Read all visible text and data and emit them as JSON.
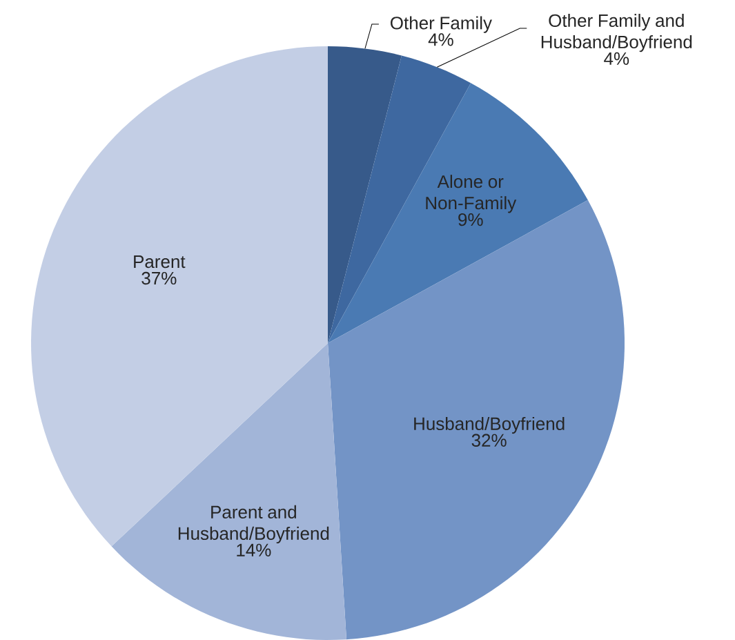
{
  "chart_data": {
    "type": "pie",
    "categories": [
      "Other Family",
      "Other Family and Husband/Boyfriend",
      "Alone or Non-Family",
      "Husband/Boyfriend",
      "Parent and Husband/Boyfriend",
      "Parent"
    ],
    "values": [
      4,
      4,
      9,
      32,
      14,
      37
    ],
    "value_labels": [
      "4%",
      "4%",
      "9%",
      "32%",
      "14%",
      "37%"
    ],
    "colors": [
      "#375a8a",
      "#3e68a0",
      "#4a7ab3",
      "#7394c6",
      "#a2b5d8",
      "#c3cee5"
    ]
  }
}
